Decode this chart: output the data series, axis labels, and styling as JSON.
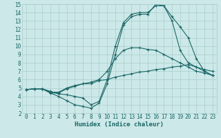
{
  "xlabel": "Humidex (Indice chaleur)",
  "bg_color": "#cce8e8",
  "grid_color": "#aacccc",
  "line_color": "#1a6666",
  "xlim": [
    -0.5,
    23.5
  ],
  "ylim": [
    2,
    15
  ],
  "xticks": [
    0,
    1,
    2,
    3,
    4,
    5,
    6,
    7,
    8,
    9,
    10,
    11,
    12,
    13,
    14,
    15,
    16,
    17,
    18,
    19,
    20,
    21,
    22,
    23
  ],
  "yticks": [
    2,
    3,
    4,
    5,
    6,
    7,
    8,
    9,
    10,
    11,
    12,
    13,
    14,
    15
  ],
  "lines": [
    {
      "x": [
        0,
        1,
        2,
        3,
        4,
        5,
        6,
        7,
        8,
        9,
        10,
        11,
        12,
        13,
        14,
        15,
        16,
        17,
        18,
        19,
        20,
        21,
        22,
        23
      ],
      "y": [
        4.8,
        4.9,
        4.9,
        4.4,
        4.0,
        3.5,
        3.0,
        2.8,
        2.6,
        3.2,
        5.5,
        9.0,
        12.5,
        13.5,
        13.8,
        13.8,
        15.0,
        14.8,
        13.5,
        12.3,
        11.0,
        8.5,
        7.0,
        6.5
      ]
    },
    {
      "x": [
        0,
        1,
        2,
        3,
        4,
        5,
        6,
        7,
        8,
        9,
        10,
        11,
        12,
        13,
        14,
        15,
        16,
        17,
        18,
        19,
        20,
        21,
        22,
        23
      ],
      "y": [
        4.8,
        4.9,
        4.9,
        4.6,
        4.3,
        4.2,
        4.0,
        3.8,
        3.0,
        3.4,
        6.0,
        10.0,
        12.8,
        13.8,
        14.0,
        14.0,
        14.8,
        14.8,
        13.0,
        9.5,
        8.0,
        7.5,
        7.0,
        6.5
      ]
    },
    {
      "x": [
        0,
        1,
        2,
        3,
        4,
        5,
        6,
        7,
        8,
        9,
        10,
        11,
        12,
        13,
        14,
        15,
        16,
        17,
        18,
        19,
        20,
        21,
        22,
        23
      ],
      "y": [
        4.8,
        4.9,
        4.9,
        4.5,
        4.5,
        5.0,
        5.3,
        5.5,
        5.7,
        6.0,
        7.0,
        8.5,
        9.5,
        9.8,
        9.8,
        9.6,
        9.5,
        9.0,
        8.5,
        8.0,
        7.5,
        7.0,
        6.8,
        6.5
      ]
    },
    {
      "x": [
        0,
        1,
        2,
        3,
        4,
        5,
        6,
        7,
        8,
        9,
        10,
        11,
        12,
        13,
        14,
        15,
        16,
        17,
        18,
        19,
        20,
        21,
        22,
        23
      ],
      "y": [
        4.8,
        4.9,
        4.9,
        4.4,
        4.4,
        4.9,
        5.2,
        5.5,
        5.5,
        5.9,
        6.0,
        6.3,
        6.5,
        6.7,
        6.9,
        7.0,
        7.2,
        7.3,
        7.5,
        7.6,
        7.8,
        7.5,
        7.2,
        7.0
      ]
    }
  ]
}
